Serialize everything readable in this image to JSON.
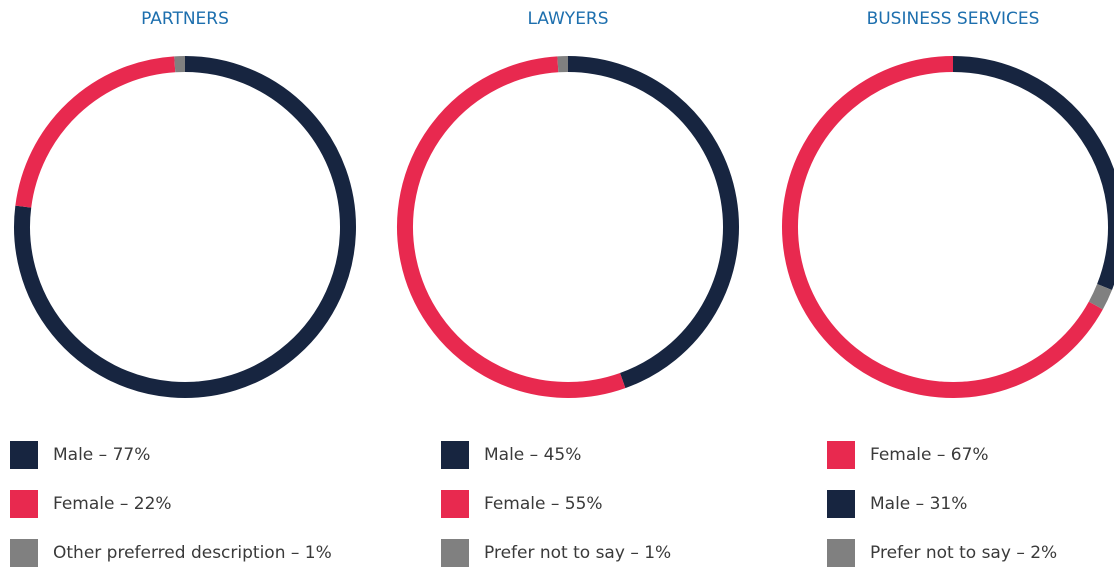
{
  "chart_data": [
    {
      "type": "donut",
      "title": "PARTNERS",
      "categories": [
        "Male – 77%",
        "Female – 22%",
        "Other preferred description – 1%"
      ],
      "values": [
        77,
        22,
        1
      ],
      "colors": [
        "#172540",
        "#e8294f",
        "#808080"
      ]
    },
    {
      "type": "donut",
      "title": "LAWYERS",
      "categories": [
        "Male – 45%",
        "Female – 55%",
        "Prefer not to say – 1%"
      ],
      "values": [
        45,
        55,
        1
      ],
      "colors": [
        "#172540",
        "#e8294f",
        "#808080"
      ]
    },
    {
      "type": "donut",
      "title": "BUSINESS SERVICES",
      "categories": [
        "Female – 67%",
        "Male – 31%",
        "Prefer not to say – 2%"
      ],
      "values": [
        67,
        31,
        2
      ],
      "colors": [
        "#e8294f",
        "#172540",
        "#808080"
      ]
    }
  ]
}
